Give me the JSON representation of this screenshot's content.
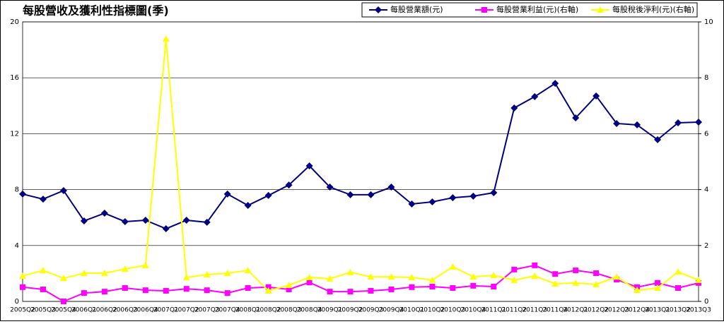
{
  "chart_data": {
    "type": "line",
    "title": "每股營收及獲利性指標圖(季)",
    "categories": [
      "2005Q2",
      "2005Q3",
      "2005Q4",
      "2006Q1",
      "2006Q2",
      "2006Q3",
      "2006Q4",
      "2007Q1",
      "2007Q2",
      "2007Q3",
      "2007Q4",
      "2008Q1",
      "2008Q2",
      "2008Q3",
      "2008Q4",
      "2009Q1",
      "2009Q2",
      "2009Q3",
      "2009Q4",
      "2010Q1",
      "2010Q2",
      "2010Q3",
      "2010Q4",
      "2011Q1",
      "2011Q2",
      "2011Q3",
      "2011Q4",
      "2012Q1",
      "2012Q2",
      "2012Q3",
      "2012Q4",
      "2013Q1",
      "2013Q2",
      "2013Q3"
    ],
    "series": [
      {
        "name": "每股營業額(元)",
        "color": "#000080",
        "marker": "diamond",
        "values": [
          7.68,
          7.32,
          7.93,
          5.76,
          6.31,
          5.71,
          5.81,
          5.2,
          5.81,
          5.66,
          7.68,
          6.87,
          7.58,
          8.33,
          9.7,
          8.18,
          7.63,
          7.63,
          8.18,
          6.97,
          7.12,
          7.42,
          7.53,
          7.78,
          13.84,
          14.65,
          15.6,
          13.13,
          14.7,
          12.73,
          12.63,
          11.57,
          12.78,
          12.83
        ]
      },
      {
        "name": "每股營業利益(元)(右軸)",
        "color": "#ff00ff",
        "marker": "square",
        "axis": "y2",
        "values": [
          0.51,
          0.43,
          0,
          0.3,
          0.35,
          0.48,
          0.4,
          0.38,
          0.45,
          0.4,
          0.3,
          0.48,
          0.51,
          0.43,
          0.68,
          0.35,
          0.35,
          0.38,
          0.43,
          0.51,
          0.53,
          0.48,
          0.56,
          0.53,
          1.14,
          1.29,
          0.98,
          1.11,
          1.01,
          0.78,
          0.51,
          0.66,
          0.48,
          0.66
        ]
      },
      {
        "name": "每股稅後淨利(元)(右軸)",
        "color": "#ffff00",
        "marker": "triangle",
        "axis": "y2",
        "values": [
          0.91,
          1.11,
          0.83,
          1.01,
          1.01,
          1.16,
          1.29,
          9.39,
          0.86,
          0.96,
          1.01,
          1.11,
          0.38,
          0.58,
          0.86,
          0.81,
          1.04,
          0.88,
          0.88,
          0.86,
          0.76,
          1.24,
          0.88,
          0.93,
          0.76,
          0.91,
          0.63,
          0.66,
          0.61,
          0.88,
          0.4,
          0.48,
          1.06,
          0.76
        ]
      }
    ],
    "ylim": [
      0,
      20
    ],
    "yticks": [
      0,
      4,
      8,
      12,
      16,
      20
    ],
    "y2lim": [
      0,
      10
    ],
    "y2ticks": [
      0,
      2,
      4,
      6,
      8,
      10
    ],
    "grid": true
  }
}
